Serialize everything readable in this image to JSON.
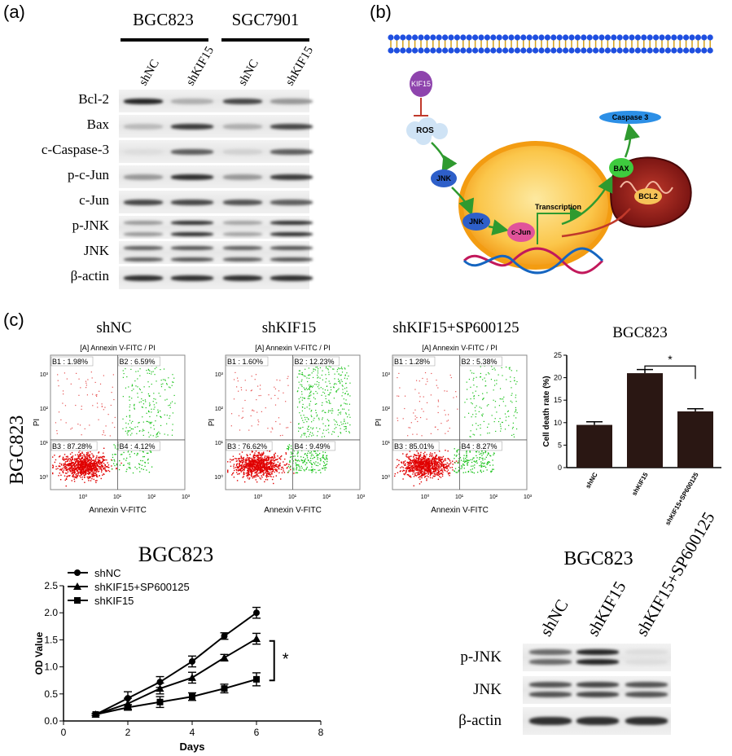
{
  "panels": {
    "a": "(a)",
    "b": "(b)",
    "c": "(c)"
  },
  "blot_a": {
    "cell_lines": [
      "BGC823",
      "SGC7901"
    ],
    "lanes": [
      "shNC",
      "shKIF15",
      "shNC",
      "shKIF15"
    ],
    "rows": [
      {
        "label": "Bcl-2",
        "intensity": [
          0.95,
          0.35,
          0.8,
          0.45
        ]
      },
      {
        "label": "Bax",
        "intensity": [
          0.3,
          0.85,
          0.35,
          0.8
        ]
      },
      {
        "label": "c-Caspase-3",
        "intensity": [
          0.15,
          0.7,
          0.2,
          0.7
        ]
      },
      {
        "label": "p-c-Jun",
        "intensity": [
          0.45,
          0.9,
          0.45,
          0.85
        ]
      },
      {
        "label": "c-Jun",
        "intensity": [
          0.8,
          0.8,
          0.75,
          0.7
        ]
      },
      {
        "label": "p-JNK",
        "intensity": [
          0.45,
          0.9,
          0.4,
          0.9
        ]
      },
      {
        "label": "JNK",
        "intensity": [
          0.7,
          0.75,
          0.7,
          0.75
        ]
      },
      {
        "label": "β-actin",
        "intensity": [
          0.9,
          0.9,
          0.9,
          0.9
        ]
      }
    ]
  },
  "pathway": {
    "kif15": "KIF15",
    "ros": "ROS",
    "jnk1": "JNK",
    "jnk2": "JNK",
    "cjun": "c-Jun",
    "transcription": "Transcription",
    "bax": "BAX",
    "bcl2": "BCL2",
    "caspase": "Caspase 3"
  },
  "flow": {
    "row_label": "BGC823",
    "title_line": "[A] Annexin V-FITC / PI",
    "xlabel": "Annexin V-FITC",
    "ylabel": "PI",
    "ticks_x": [
      "10⁰",
      "10¹",
      "10²",
      "10³"
    ],
    "ticks_y": [
      "10³",
      "10²",
      "10¹",
      "10⁰"
    ],
    "plots": [
      {
        "title": "shNC",
        "b1": "B1 : 1.98%",
        "b2": "B2 : 6.59%",
        "b3": "B3 : 87.28%",
        "b4": "B4 : 4.12%",
        "q2": 0.07,
        "q4": 0.04,
        "q1": 0.02
      },
      {
        "title": "shKIF15",
        "b1": "B1 : 1.60%",
        "b2": "B2 : 12.23%",
        "b3": "B3 : 76.62%",
        "b4": "B4 : 9.49%",
        "q2": 0.12,
        "q4": 0.095,
        "q1": 0.016
      },
      {
        "title": "shKIF15+SP600125",
        "b1": "B1 : 1.28%",
        "b2": "B2 : 5.38%",
        "b3": "B3 : 85.01%",
        "b4": "B4 : 8.27%",
        "q2": 0.054,
        "q4": 0.083,
        "q1": 0.013
      }
    ]
  },
  "chart_data": [
    {
      "type": "bar",
      "title": "BGC823",
      "ylabel": "Cell death rate (%)",
      "categories": [
        "shNC",
        "shKIF15",
        "shKIF15+SP600125"
      ],
      "values": [
        9.5,
        21,
        12.5
      ],
      "errors": [
        0.7,
        0.8,
        0.6
      ],
      "ylim": [
        0,
        25
      ],
      "yticks": [
        "0",
        "5",
        "10",
        "15",
        "20",
        "25"
      ],
      "significance": "*",
      "color": "#2a1713"
    },
    {
      "type": "line",
      "title": "BGC823",
      "xlabel": "Days",
      "ylabel": "OD Value",
      "xlim": [
        0,
        8
      ],
      "ylim": [
        0,
        2.5
      ],
      "xticks": [
        "0",
        "2",
        "4",
        "6",
        "8"
      ],
      "yticks": [
        "0.0",
        "0.5",
        "1.0",
        "1.5",
        "2.0",
        "2.5"
      ],
      "x": [
        1,
        2,
        3,
        4,
        5,
        6
      ],
      "series": [
        {
          "name": "shNC",
          "marker": "circle",
          "values": [
            0.12,
            0.42,
            0.72,
            1.1,
            1.57,
            2.0
          ],
          "errors": [
            0.02,
            0.12,
            0.1,
            0.1,
            0.06,
            0.1
          ]
        },
        {
          "name": "shKIF15+SP600125",
          "marker": "triangle",
          "values": [
            0.12,
            0.32,
            0.6,
            0.8,
            1.17,
            1.52
          ],
          "errors": [
            0.02,
            0.1,
            0.1,
            0.1,
            0.06,
            0.1
          ]
        },
        {
          "name": "shKIF15",
          "marker": "square",
          "values": [
            0.12,
            0.25,
            0.35,
            0.45,
            0.6,
            0.77
          ],
          "errors": [
            0.02,
            0.05,
            0.1,
            0.07,
            0.08,
            0.12
          ]
        }
      ],
      "significance": "*"
    }
  ],
  "blot_c": {
    "title": "BGC823",
    "lanes": [
      "shNC",
      "shKIF15",
      "shKIF15+SP600125"
    ],
    "rows": [
      {
        "label": "p-JNK",
        "intensity": [
          0.65,
          0.95,
          0.15
        ]
      },
      {
        "label": "JNK",
        "intensity": [
          0.75,
          0.8,
          0.75
        ]
      },
      {
        "label": "β-actin",
        "intensity": [
          0.9,
          0.9,
          0.9
        ]
      }
    ]
  }
}
